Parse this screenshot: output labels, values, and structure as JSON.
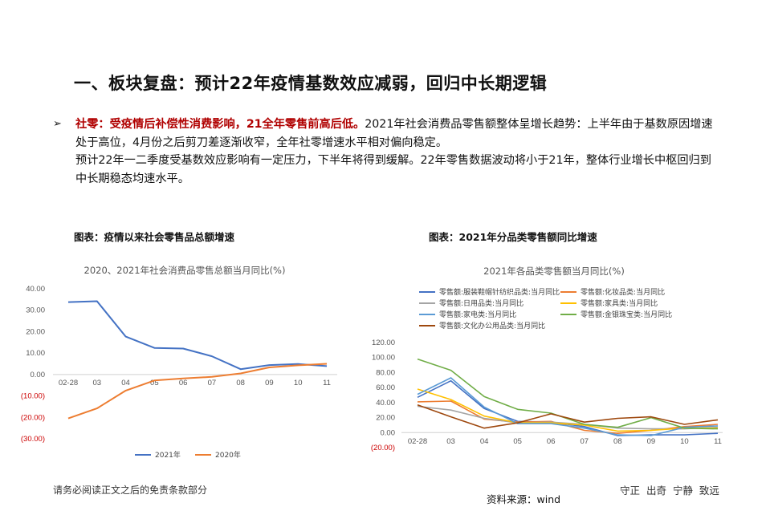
{
  "title": "一、板块复盘：预计22年疫情基数效应减弱，回归中长期逻辑",
  "bullet": {
    "marker": "➢",
    "lead": "社零：受疫情后补偿性消费影响，21全年零售前高后低。",
    "text1": "2021年社会消费品零售额整体呈增长趋势：上半年由于基数原因增速处于高位，4月份之后剪刀差逐渐收窄，全年社零增速水平相对偏向稳定。",
    "text2": "预计22年一二季度受基数效应影响有一定压力，下半年将得到缓解。22年零售数据波动将小于21年，整体行业增长中枢回归到中长期稳态均速水平。"
  },
  "captions": {
    "left": "图表：疫情以来社会零售品总额增速",
    "right": "图表：2021年分品类零售额同比增速"
  },
  "footer": {
    "disclaimer": "请务必阅读正文之后的免责条款部分",
    "source": "资料来源：wind",
    "motto": "守正 出奇 宁静 致远"
  },
  "colors": {
    "blue": "#4472c4",
    "orange": "#ed7d31",
    "gray": "#a5a5a5",
    "yellow": "#ffc000",
    "lightblue": "#5b9bd5",
    "green": "#70ad47",
    "brown": "#9e480e",
    "negative": "#cc0000",
    "accent": "#b00000"
  },
  "chart_data": [
    {
      "type": "line",
      "title": "2020、2021年社会消费品零售总额当月同比(%)",
      "categories": [
        "02-28",
        "03",
        "04",
        "05",
        "06",
        "07",
        "08",
        "09",
        "10",
        "11"
      ],
      "ylim": [
        -30,
        40
      ],
      "yticks": [
        "40.00",
        "30.00",
        "20.00",
        "10.00",
        "0.00",
        "(10.00)",
        "(20.00)",
        "(30.00)"
      ],
      "legend_position": "bottom",
      "series": [
        {
          "name": "2021年",
          "color": "#4472c4",
          "values": [
            33.8,
            34.2,
            17.7,
            12.4,
            12.1,
            8.5,
            2.5,
            4.4,
            4.9,
            3.9
          ]
        },
        {
          "name": "2020年",
          "color": "#ed7d31",
          "values": [
            -20.5,
            -15.8,
            -7.5,
            -2.8,
            -1.8,
            -1.1,
            0.5,
            3.3,
            4.3,
            5.0
          ]
        }
      ]
    },
    {
      "type": "line",
      "title": "2021年各品类零售额当月同比(%)",
      "categories": [
        "02-28",
        "03",
        "04",
        "05",
        "06",
        "07",
        "08",
        "09",
        "10",
        "11"
      ],
      "ylim": [
        -20,
        120
      ],
      "yticks": [
        "120.00",
        "100.00",
        "80.00",
        "60.00",
        "40.00",
        "20.00",
        "0.00",
        "(20.00)"
      ],
      "legend_position": "top",
      "series": [
        {
          "name": "零售额:服装鞋帽针纺织品类:当月同比",
          "color": "#4472c4",
          "values": [
            47,
            69,
            32,
            15,
            14,
            8,
            -4,
            -3,
            -3,
            -1
          ]
        },
        {
          "name": "零售额:化妆品类:当月同比",
          "color": "#ed7d31",
          "values": [
            41,
            42,
            18,
            14,
            15,
            3,
            -1,
            3,
            8,
            11
          ]
        },
        {
          "name": "零售额:日用品类:当月同比",
          "color": "#a5a5a5",
          "values": [
            35,
            30,
            19,
            13,
            14,
            11,
            6,
            5,
            5,
            7
          ]
        },
        {
          "name": "零售额:家具类:当月同比",
          "color": "#ffc000",
          "values": [
            58,
            44,
            22,
            13,
            13,
            10,
            2,
            3,
            6,
            6
          ]
        },
        {
          "name": "零售额:家电类:当月同比",
          "color": "#5b9bd5",
          "values": [
            51,
            73,
            34,
            12,
            12,
            6,
            -3,
            -4,
            7,
            9
          ]
        },
        {
          "name": "零售额:金银珠宝类:当月同比",
          "color": "#70ad47",
          "values": [
            98,
            83,
            48,
            31,
            26,
            11,
            7,
            20,
            6,
            5
          ]
        },
        {
          "name": "零售额:文化办公用品类:当月同比",
          "color": "#9e480e",
          "values": [
            37,
            21,
            6,
            13,
            25,
            14,
            19,
            21,
            11,
            17
          ]
        }
      ]
    }
  ]
}
